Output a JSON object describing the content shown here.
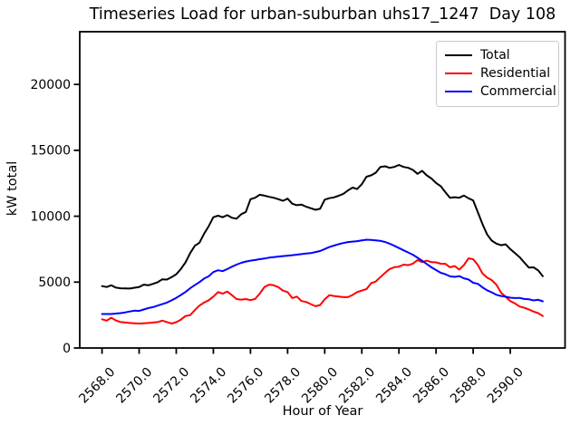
{
  "chart_data": {
    "type": "line",
    "title": "Timeseries Load for urban-suburban uhs17_1247  Day 108",
    "xlabel": "Hour of Year",
    "ylabel": "kW total",
    "grid": false,
    "legend_position": "upper right",
    "xlim": [
      2566.8,
      2592.95
    ],
    "ylim": [
      0,
      24000
    ],
    "xticks": {
      "values": [
        2568,
        2570,
        2572,
        2574,
        2576,
        2578,
        2580,
        2582,
        2584,
        2586,
        2588,
        2590
      ],
      "labels": [
        "2568.0",
        "2570.0",
        "2572.0",
        "2574.0",
        "2576.0",
        "2578.0",
        "2580.0",
        "2582.0",
        "2584.0",
        "2586.0",
        "2588.0",
        "2590.0"
      ]
    },
    "yticks": {
      "values": [
        0,
        5000,
        10000,
        15000,
        20000
      ],
      "labels": [
        "0",
        "5000",
        "10000",
        "15000",
        "20000"
      ]
    },
    "x": [
      2568.0,
      2568.25,
      2568.5,
      2568.75,
      2569.0,
      2569.25,
      2569.5,
      2569.75,
      2570.0,
      2570.25,
      2570.5,
      2570.75,
      2571.0,
      2571.25,
      2571.5,
      2571.75,
      2572.0,
      2572.25,
      2572.5,
      2572.75,
      2573.0,
      2573.25,
      2573.5,
      2573.75,
      2574.0,
      2574.25,
      2574.5,
      2574.75,
      2575.0,
      2575.25,
      2575.5,
      2575.75,
      2576.0,
      2576.25,
      2576.5,
      2576.75,
      2577.0,
      2577.25,
      2577.5,
      2577.75,
      2578.0,
      2578.25,
      2578.5,
      2578.75,
      2579.0,
      2579.25,
      2579.5,
      2579.75,
      2580.0,
      2580.25,
      2580.5,
      2580.75,
      2581.0,
      2581.25,
      2581.5,
      2581.75,
      2582.0,
      2582.25,
      2582.5,
      2582.75,
      2583.0,
      2583.25,
      2583.5,
      2583.75,
      2584.0,
      2584.25,
      2584.5,
      2584.75,
      2585.0,
      2585.25,
      2585.5,
      2585.75,
      2586.0,
      2586.25,
      2586.5,
      2586.75,
      2587.0,
      2587.25,
      2587.5,
      2587.75,
      2588.0,
      2588.25,
      2588.5,
      2588.75,
      2589.0,
      2589.25,
      2589.5,
      2589.75,
      2590.0,
      2590.25,
      2590.5,
      2590.75,
      2591.0,
      2591.25,
      2591.5,
      2591.75
    ],
    "series": [
      {
        "name": "Total",
        "color": "#000000",
        "values": [
          4700,
          4630,
          4760,
          4580,
          4535,
          4520,
          4510,
          4570,
          4630,
          4810,
          4760,
          4870,
          4990,
          5215,
          5195,
          5375,
          5600,
          6000,
          6500,
          7195,
          7760,
          7990,
          8675,
          9240,
          9925,
          10040,
          9925,
          10080,
          9880,
          9810,
          10150,
          10330,
          11290,
          11400,
          11630,
          11560,
          11470,
          11400,
          11290,
          11170,
          11330,
          10950,
          10835,
          10880,
          10720,
          10605,
          10490,
          10560,
          11260,
          11370,
          11430,
          11550,
          11700,
          11950,
          12170,
          12060,
          12430,
          13000,
          13100,
          13300,
          13740,
          13785,
          13670,
          13740,
          13890,
          13740,
          13670,
          13510,
          13215,
          13445,
          13100,
          12860,
          12520,
          12280,
          11830,
          11400,
          11445,
          11400,
          11570,
          11360,
          11200,
          10300,
          9400,
          8620,
          8150,
          7920,
          7800,
          7870,
          7500,
          7200,
          6900,
          6500,
          6100,
          6120,
          5890,
          5450
        ]
      },
      {
        "name": "Residential",
        "color": "#ff0000",
        "values": [
          2180,
          2080,
          2300,
          2090,
          1970,
          1930,
          1895,
          1875,
          1860,
          1875,
          1895,
          1930,
          1965,
          2080,
          1965,
          1860,
          1960,
          2150,
          2430,
          2490,
          2875,
          3220,
          3445,
          3625,
          3900,
          4240,
          4125,
          4285,
          4010,
          3715,
          3670,
          3715,
          3630,
          3720,
          4125,
          4625,
          4810,
          4760,
          4620,
          4350,
          4240,
          3790,
          3900,
          3560,
          3490,
          3330,
          3170,
          3260,
          3700,
          4010,
          3945,
          3900,
          3855,
          3860,
          4020,
          4240,
          4360,
          4470,
          4920,
          5040,
          5375,
          5700,
          6000,
          6130,
          6170,
          6330,
          6285,
          6400,
          6670,
          6510,
          6630,
          6510,
          6500,
          6395,
          6390,
          6125,
          6215,
          5945,
          6290,
          6800,
          6740,
          6300,
          5650,
          5350,
          5150,
          4810,
          4200,
          3880,
          3560,
          3380,
          3150,
          3055,
          2920,
          2765,
          2650,
          2430
        ]
      },
      {
        "name": "Commercial",
        "color": "#0000ff",
        "values": [
          2580,
          2580,
          2580,
          2610,
          2650,
          2700,
          2770,
          2830,
          2815,
          2920,
          3035,
          3100,
          3220,
          3330,
          3445,
          3615,
          3800,
          4020,
          4250,
          4530,
          4770,
          5000,
          5265,
          5440,
          5760,
          5900,
          5830,
          5990,
          6170,
          6330,
          6465,
          6560,
          6630,
          6680,
          6740,
          6790,
          6855,
          6900,
          6940,
          6975,
          7010,
          7045,
          7080,
          7125,
          7165,
          7200,
          7280,
          7360,
          7510,
          7660,
          7770,
          7880,
          7965,
          8040,
          8075,
          8110,
          8165,
          8220,
          8195,
          8170,
          8130,
          8045,
          7915,
          7755,
          7585,
          7415,
          7245,
          7075,
          6850,
          6625,
          6375,
          6120,
          5915,
          5710,
          5595,
          5440,
          5400,
          5450,
          5290,
          5200,
          4950,
          4870,
          4600,
          4380,
          4220,
          4040,
          3950,
          3890,
          3820,
          3790,
          3800,
          3720,
          3700,
          3610,
          3660,
          3540
        ]
      }
    ]
  }
}
